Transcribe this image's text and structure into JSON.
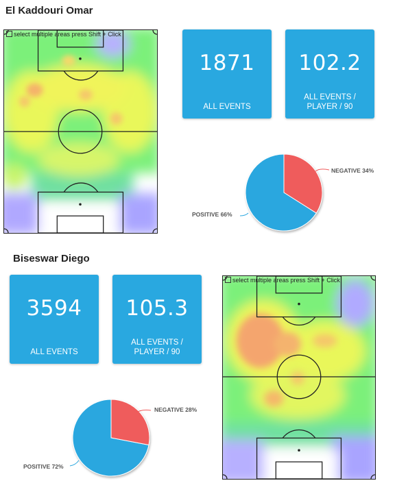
{
  "colors": {
    "card_bg": "#29a8e0",
    "positive": "#2aa7df",
    "negative": "#ef5b5b",
    "line": "#222222"
  },
  "pitch_hint": "select multiple areas press Shift + Click",
  "players": [
    {
      "name": "El Kaddouri Omar",
      "total_events": "1871",
      "total_events_label": "ALL EVENTS",
      "per90": "102.2",
      "per90_label_1": "ALL EVENTS /",
      "per90_label_2": "PLAYER / 90",
      "pie": {
        "positive_label": "POSITIVE 66%",
        "negative_label": "NEGATIVE 34%",
        "positive": 66,
        "negative": 34
      }
    },
    {
      "name": "Biseswar Diego",
      "total_events": "3594",
      "total_events_label": "ALL EVENTS",
      "per90": "105.3",
      "per90_label_1": "ALL EVENTS /",
      "per90_label_2": "PLAYER / 90",
      "pie": {
        "positive_label": "POSITIVE 72%",
        "negative_label": "NEGATIVE 28%",
        "positive": 72,
        "negative": 28
      }
    }
  ]
}
